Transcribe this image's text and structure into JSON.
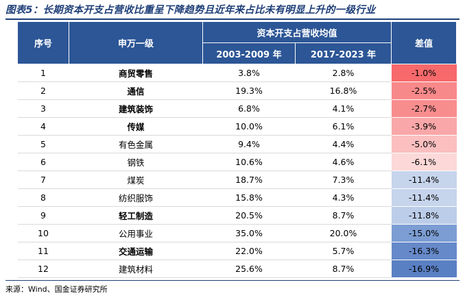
{
  "title": "图表5：长期资本开支占营收比重呈下降趋势且近年来占比未有明显上升的一级行业",
  "table": {
    "headers": {
      "index": "序号",
      "industry": "申万一级",
      "group": "资本开支占营收均值",
      "period1": "2003-2009 年",
      "period2": "2017-2023 年",
      "diff": "差值"
    },
    "rows": [
      {
        "no": "1",
        "name": "商贸零售",
        "bold": true,
        "v1": "3.8%",
        "v2": "2.8%",
        "diff": "-1.0%",
        "color": "#f7696b"
      },
      {
        "no": "2",
        "name": "通信",
        "bold": true,
        "v1": "19.3%",
        "v2": "16.8%",
        "diff": "-2.5%",
        "color": "#f8898a"
      },
      {
        "no": "3",
        "name": "建筑装饰",
        "bold": true,
        "v1": "6.8%",
        "v2": "4.1%",
        "diff": "-2.7%",
        "color": "#f88d8e"
      },
      {
        "no": "4",
        "name": "传媒",
        "bold": true,
        "v1": "10.0%",
        "v2": "6.1%",
        "diff": "-3.9%",
        "color": "#f9a7a8"
      },
      {
        "no": "5",
        "name": "有色金属",
        "bold": false,
        "v1": "9.4%",
        "v2": "4.4%",
        "diff": "-5.0%",
        "color": "#fbbfc0"
      },
      {
        "no": "6",
        "name": "钢铁",
        "bold": false,
        "v1": "10.6%",
        "v2": "4.6%",
        "diff": "-6.1%",
        "color": "#fcd8d8"
      },
      {
        "no": "7",
        "name": "煤炭",
        "bold": false,
        "v1": "18.7%",
        "v2": "7.3%",
        "diff": "-11.4%",
        "color": "#c6d4ec"
      },
      {
        "no": "8",
        "name": "纺织服饰",
        "bold": false,
        "v1": "15.8%",
        "v2": "4.3%",
        "diff": "-11.4%",
        "color": "#c6d4ec"
      },
      {
        "no": "9",
        "name": "轻工制造",
        "bold": true,
        "v1": "20.5%",
        "v2": "8.7%",
        "diff": "-11.8%",
        "color": "#bccde9"
      },
      {
        "no": "10",
        "name": "公用事业",
        "bold": false,
        "v1": "35.0%",
        "v2": "20.0%",
        "diff": "-15.0%",
        "color": "#7b9dd3"
      },
      {
        "no": "11",
        "name": "交通运输",
        "bold": true,
        "v1": "22.0%",
        "v2": "5.7%",
        "diff": "-16.3%",
        "color": "#6689c9"
      },
      {
        "no": "12",
        "name": "建筑材料",
        "bold": false,
        "v1": "25.6%",
        "v2": "8.7%",
        "diff": "-16.9%",
        "color": "#5a80c4"
      }
    ]
  },
  "source": "来源：Wind、国金证券研究所"
}
